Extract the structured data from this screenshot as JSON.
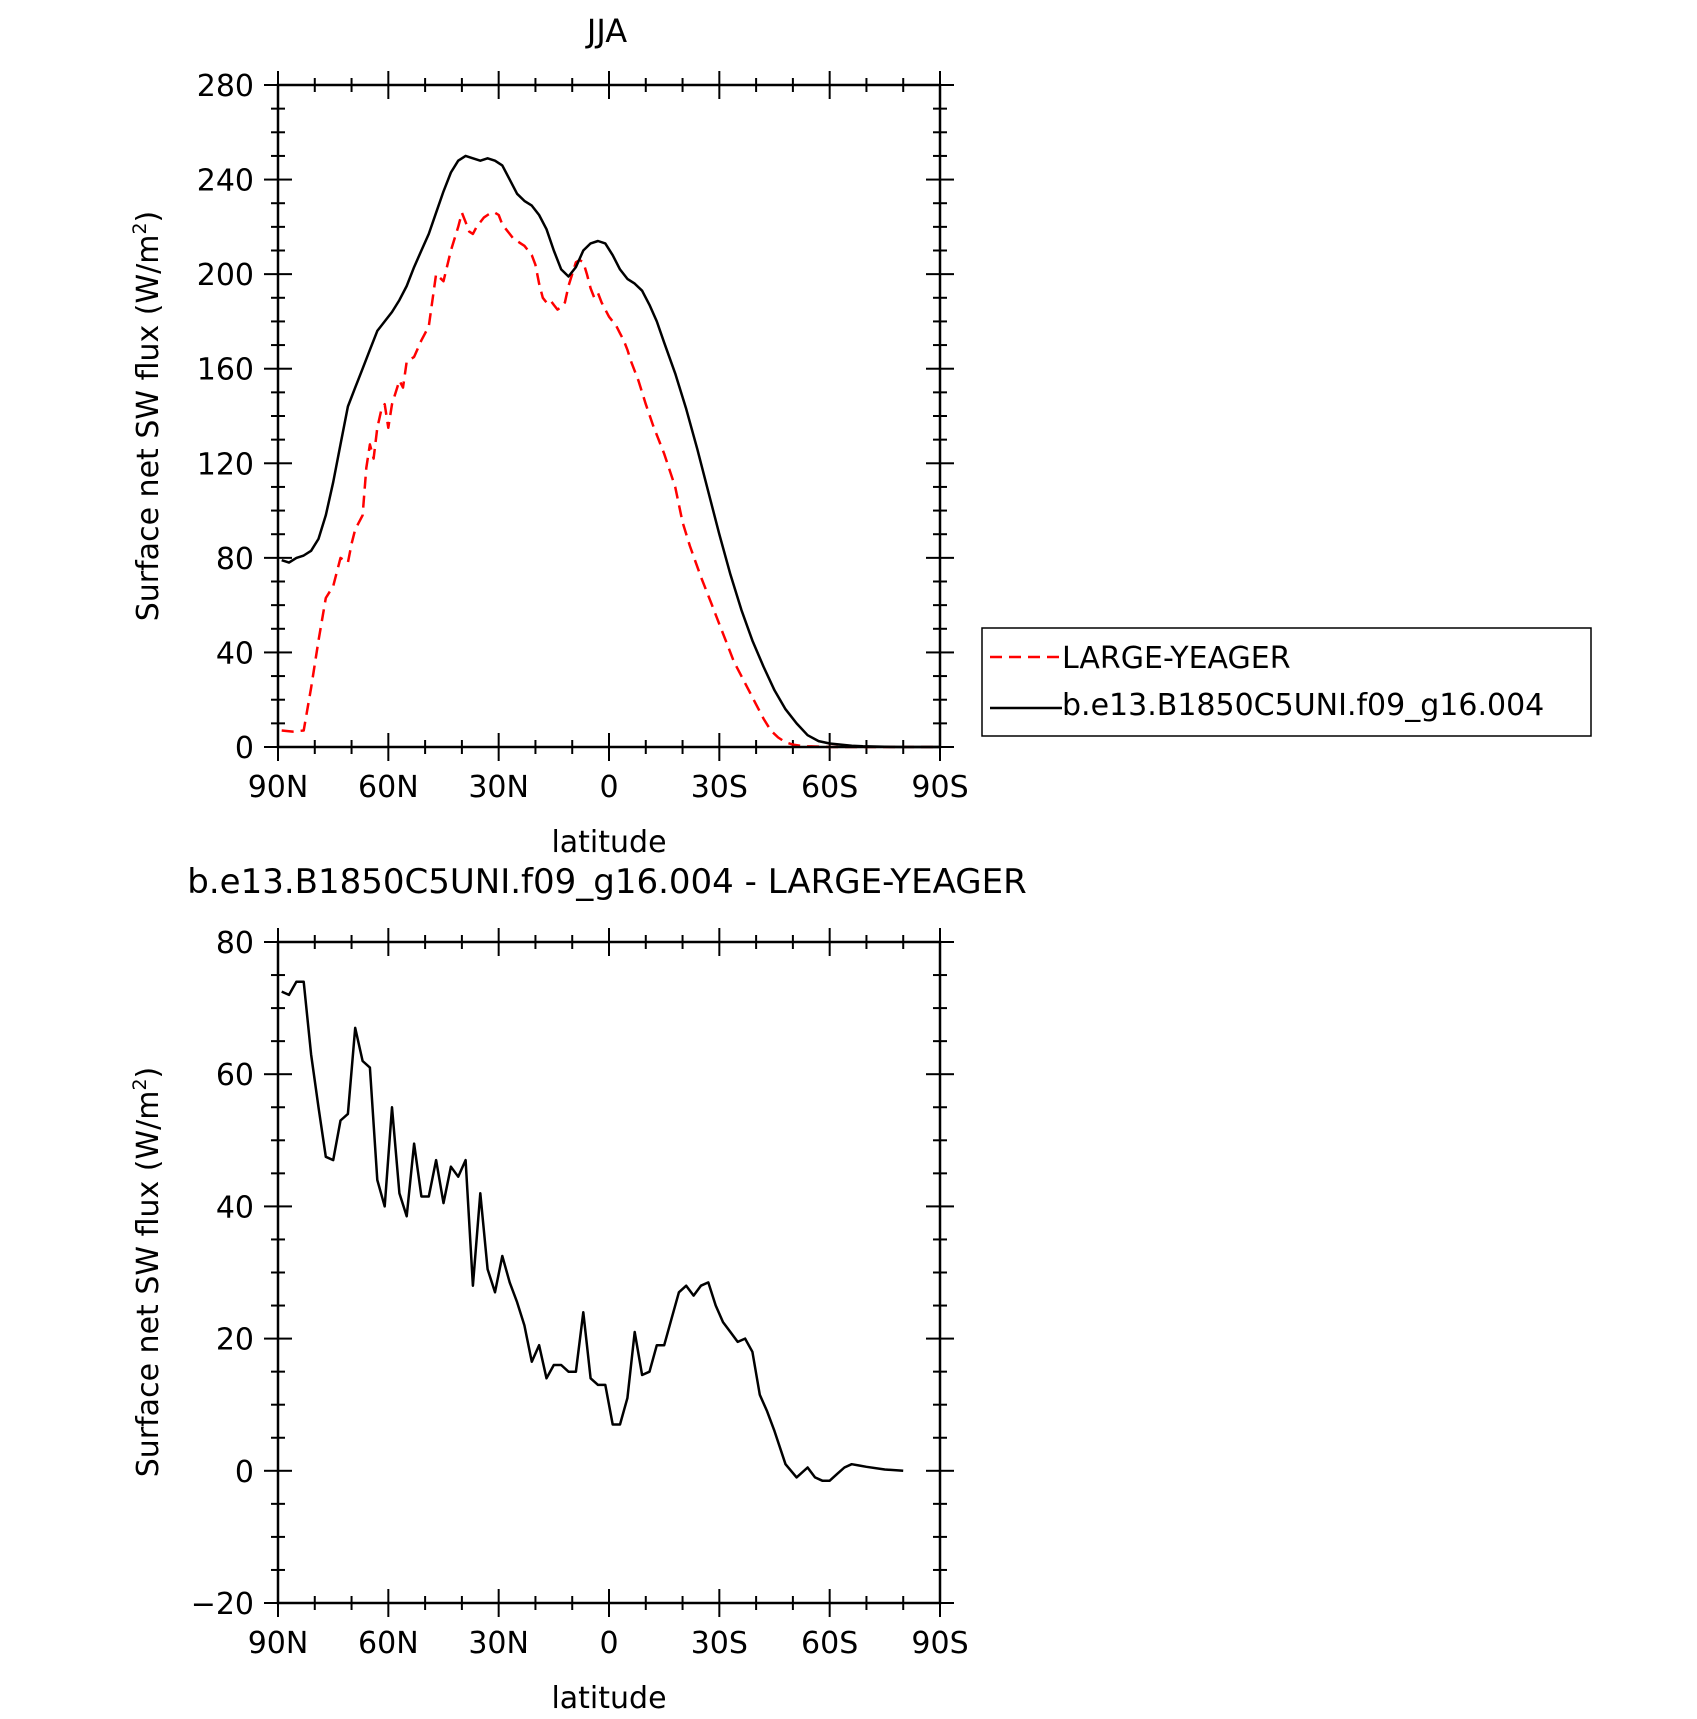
{
  "chart_data": [
    {
      "type": "line",
      "title": "JJA",
      "xlabel": "latitude",
      "ylabel": "Surface net SW flux (W/m",
      "ylabel_sup": "2",
      "ylabel_close": ")",
      "xlim": [
        90,
        -90
      ],
      "ylim": [
        0,
        280
      ],
      "x_ticks": [
        90,
        60,
        30,
        0,
        -30,
        -60,
        -90
      ],
      "x_tick_labels": [
        "90N",
        "60N",
        "30N",
        "0",
        "30S",
        "60S",
        "90S"
      ],
      "y_ticks": [
        0,
        40,
        80,
        120,
        160,
        200,
        240,
        280
      ],
      "y_tick_labels": [
        "0",
        "40",
        "80",
        "120",
        "160",
        "200",
        "240",
        "280"
      ],
      "legend_position": "right",
      "series": [
        {
          "name": "LARGE-YEAGER",
          "color": "#ff0000",
          "dash": "dashed",
          "x": [
            89,
            86,
            83,
            81,
            79,
            77,
            75,
            73,
            71,
            70,
            69,
            67,
            66,
            65,
            64,
            63,
            62,
            61,
            60,
            59,
            58,
            57,
            56,
            55,
            53,
            51,
            50,
            49,
            47,
            45,
            43,
            41,
            40,
            39,
            38,
            37,
            36,
            35,
            34,
            33,
            32,
            31,
            30,
            29,
            28,
            27,
            26,
            25,
            24,
            23,
            22,
            21,
            20,
            19,
            18,
            17,
            16,
            15,
            14,
            13,
            12,
            11,
            10,
            9,
            8,
            7,
            6,
            5,
            4,
            3,
            2,
            1,
            0,
            -1,
            -2,
            -3,
            -4,
            -5,
            -6,
            -8,
            -10,
            -12,
            -15,
            -18,
            -20,
            -22,
            -25,
            -28,
            -30,
            -32,
            -34,
            -36,
            -38,
            -40,
            -42,
            -44,
            -46,
            -48,
            -50,
            -52,
            -54,
            -56,
            -58,
            -60,
            -62,
            -64,
            -66,
            -68,
            -70,
            -72,
            -75,
            -78,
            -80,
            -82,
            -85,
            -88,
            -90
          ],
          "y": [
            7,
            6.5,
            7,
            25,
            45,
            63,
            68,
            80,
            78,
            86,
            92,
            98,
            118,
            128,
            122,
            135,
            142,
            145,
            135,
            145,
            150,
            155,
            152,
            163,
            165,
            172,
            175,
            178,
            200,
            197,
            210,
            220,
            226,
            222,
            218,
            217,
            220,
            222,
            224,
            225,
            226,
            226,
            225,
            221,
            219,
            217,
            215,
            214,
            213,
            212,
            210,
            208,
            204,
            196,
            190,
            188,
            189,
            187,
            185,
            186,
            188,
            195,
            200,
            205,
            206,
            205,
            200,
            194,
            190,
            192,
            188,
            185,
            182,
            180,
            178,
            175,
            172,
            168,
            163,
            155,
            145,
            136,
            124,
            110,
            95,
            85,
            72,
            60,
            52,
            44,
            36,
            30,
            24,
            18,
            12,
            7,
            4,
            2,
            1,
            0.5,
            0.3,
            0.2,
            0.1,
            0,
            0,
            0,
            0,
            0,
            0,
            0,
            0,
            0,
            0,
            0,
            0,
            0,
            0
          ]
        },
        {
          "name": "b.e13.B1850C5UNI.f09_g16.004",
          "color": "#000000",
          "dash": "solid",
          "x": [
            89,
            87,
            85,
            83,
            81,
            79,
            77,
            75,
            73,
            71,
            69,
            67,
            65,
            63,
            61,
            59,
            57,
            55,
            53,
            51,
            49,
            47,
            45,
            43,
            41,
            39,
            37,
            35,
            33,
            31,
            29,
            27,
            25,
            23,
            21,
            19,
            17,
            15,
            13,
            11,
            9,
            7,
            5,
            3,
            1,
            -1,
            -3,
            -5,
            -7,
            -9,
            -11,
            -13,
            -15,
            -18,
            -21,
            -24,
            -27,
            -30,
            -33,
            -36,
            -39,
            -42,
            -45,
            -48,
            -51,
            -54,
            -57,
            -60,
            -63,
            -66,
            -69,
            -72,
            -75,
            -80,
            -85,
            -90
          ],
          "y": [
            79,
            78,
            80,
            81,
            83,
            88,
            98,
            112,
            128,
            144,
            152,
            160,
            168,
            176,
            180,
            184,
            189,
            195,
            203,
            210,
            217,
            226,
            235,
            243,
            248,
            250,
            249,
            248,
            249,
            248,
            246,
            240,
            234,
            231,
            229,
            225,
            219,
            210,
            202,
            199,
            203,
            210,
            213,
            214,
            213,
            208,
            202,
            198,
            196,
            193,
            187,
            180,
            171,
            158,
            143,
            126,
            108,
            90,
            73,
            58,
            45,
            34,
            24,
            16,
            10,
            5,
            2.5,
            1.5,
            1,
            0.5,
            0.3,
            0.2,
            0.1,
            0,
            0,
            0
          ]
        }
      ]
    },
    {
      "type": "line",
      "title": "b.e13.B1850C5UNI.f09_g16.004 - LARGE-YEAGER",
      "xlabel": "latitude",
      "ylabel": "Surface net SW flux (W/m",
      "ylabel_sup": "2",
      "ylabel_close": ")",
      "xlim": [
        90,
        -90
      ],
      "ylim": [
        -20,
        80
      ],
      "x_ticks": [
        90,
        60,
        30,
        0,
        -30,
        -60,
        -90
      ],
      "x_tick_labels": [
        "90N",
        "60N",
        "30N",
        "0",
        "30S",
        "60S",
        "90S"
      ],
      "y_ticks": [
        -20,
        0,
        20,
        40,
        60,
        80
      ],
      "y_tick_labels": [
        "−20",
        "0",
        "20",
        "40",
        "60",
        "80"
      ],
      "series": [
        {
          "color": "#000000",
          "dash": "solid",
          "x": [
            89,
            87,
            85,
            83,
            81,
            79,
            77,
            75,
            73,
            71,
            69,
            67,
            65,
            63,
            61,
            59,
            57,
            55,
            53,
            51,
            49,
            47,
            45,
            43,
            41,
            39,
            37,
            35,
            33,
            31,
            29,
            27,
            25,
            23,
            21,
            19,
            17,
            15,
            13,
            11,
            9,
            7,
            5,
            3,
            1,
            -1,
            -3,
            -5,
            -7,
            -9,
            -11,
            -13,
            -15,
            -17,
            -19,
            -21,
            -23,
            -25,
            -27,
            -29,
            -31,
            -33,
            -35,
            -37,
            -39,
            -41,
            -43,
            -45,
            -48,
            -51,
            -54,
            -56,
            -58,
            -60,
            -62,
            -64,
            -66,
            -68,
            -70,
            -75,
            -80
          ],
          "y": [
            72.5,
            72,
            74,
            74,
            63,
            55,
            47.5,
            47,
            53,
            54,
            67,
            62,
            61,
            44,
            40,
            55,
            42,
            38.5,
            49.5,
            41.5,
            41.5,
            47,
            40.5,
            46,
            44.5,
            47,
            28,
            42,
            30.5,
            27,
            32.5,
            28.5,
            25.5,
            22,
            16.5,
            19,
            14,
            16,
            16,
            15,
            15,
            24,
            14,
            13,
            13,
            7,
            7,
            11,
            21,
            14.5,
            15,
            19,
            19,
            23,
            27,
            28,
            26.5,
            28,
            28.5,
            25,
            22.5,
            21,
            19.5,
            20,
            18,
            11.5,
            9,
            6,
            1,
            -1,
            0.5,
            -1,
            -1.5,
            -1.5,
            -0.5,
            0.5,
            1,
            0.8,
            0.6,
            0.2,
            0
          ]
        }
      ]
    }
  ]
}
